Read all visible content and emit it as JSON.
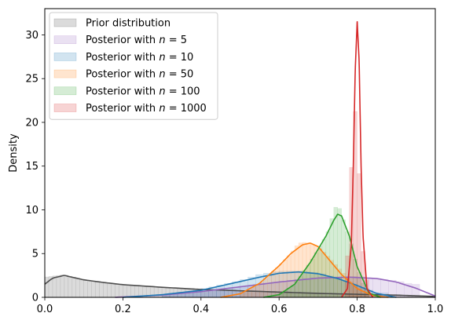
{
  "chart_data": {
    "type": "area",
    "ylabel": "Density",
    "xlabel": "",
    "xlim": [
      0.0,
      1.0
    ],
    "ylim": [
      0,
      33
    ],
    "grid": false,
    "legend_position": "top-left",
    "x_ticks": [
      "0.0",
      "0.2",
      "0.4",
      "0.6",
      "0.8",
      "1.0"
    ],
    "y_ticks": [
      "0",
      "5",
      "10",
      "15",
      "20",
      "25",
      "30"
    ],
    "series": [
      {
        "name": "Prior distribution",
        "color": "#4d4d4d",
        "kde_x": [
          0.0,
          0.02,
          0.05,
          0.1,
          0.15,
          0.2,
          0.3,
          0.4,
          0.5,
          0.6,
          0.7,
          0.8,
          0.9,
          1.0
        ],
        "kde_y": [
          1.5,
          2.2,
          2.5,
          2.0,
          1.7,
          1.45,
          1.15,
          0.9,
          0.75,
          0.6,
          0.45,
          0.35,
          0.25,
          0.1
        ],
        "hist_bin_width": 0.01,
        "hist_x": [
          0.0,
          0.05,
          0.1,
          0.2,
          0.3,
          0.4,
          0.5,
          0.6,
          0.7,
          0.8,
          0.9,
          0.99
        ],
        "hist_y": [
          2.3,
          2.6,
          2.0,
          1.45,
          1.15,
          0.9,
          0.75,
          0.6,
          0.45,
          0.35,
          0.25,
          0.15
        ]
      },
      {
        "name": "Posterior with n = 5",
        "label_prefix": "Posterior with ",
        "label_n": "5",
        "color": "#9467bd",
        "kde_x": [
          0.18,
          0.3,
          0.4,
          0.5,
          0.6,
          0.7,
          0.78,
          0.85,
          0.9,
          0.95,
          1.0
        ],
        "kde_y": [
          0.0,
          0.25,
          0.65,
          1.2,
          1.75,
          2.2,
          2.3,
          2.15,
          1.75,
          1.05,
          0.15
        ],
        "hist_bin_width": 0.02,
        "hist_x": [
          0.3,
          0.4,
          0.5,
          0.6,
          0.7,
          0.8,
          0.9,
          0.94
        ],
        "hist_y": [
          0.3,
          0.7,
          1.2,
          1.8,
          2.3,
          2.4,
          1.9,
          1.5
        ]
      },
      {
        "name": "Posterior with n = 10",
        "label_prefix": "Posterior with ",
        "label_n": "10",
        "color": "#1f77b4",
        "kde_x": [
          0.2,
          0.3,
          0.4,
          0.5,
          0.55,
          0.6,
          0.65,
          0.7,
          0.75,
          0.8,
          0.85,
          0.9
        ],
        "kde_y": [
          0.0,
          0.3,
          0.8,
          1.8,
          2.3,
          2.75,
          2.9,
          2.7,
          2.15,
          1.35,
          0.45,
          0.0
        ],
        "hist_bin_width": 0.02,
        "hist_x": [
          0.3,
          0.4,
          0.5,
          0.55,
          0.6,
          0.65,
          0.7,
          0.75,
          0.8,
          0.85
        ],
        "hist_y": [
          0.3,
          0.9,
          1.9,
          2.6,
          3.0,
          3.0,
          2.8,
          2.2,
          1.3,
          0.5
        ]
      },
      {
        "name": "Posterior with n = 50",
        "label_prefix": "Posterior with ",
        "label_n": "50",
        "color": "#ff7f0e",
        "kde_x": [
          0.45,
          0.5,
          0.55,
          0.6,
          0.63,
          0.66,
          0.68,
          0.7,
          0.73,
          0.76,
          0.8,
          0.84,
          0.88
        ],
        "kde_y": [
          0.0,
          0.4,
          1.6,
          3.6,
          5.0,
          6.0,
          6.2,
          5.8,
          4.2,
          2.6,
          1.0,
          0.2,
          0.0
        ],
        "hist_bin_width": 0.01,
        "hist_x": [
          0.5,
          0.55,
          0.6,
          0.63,
          0.65,
          0.67,
          0.69,
          0.71,
          0.74,
          0.77,
          0.8,
          0.83
        ],
        "hist_y": [
          0.4,
          1.5,
          3.6,
          5.0,
          6.2,
          6.3,
          6.0,
          5.4,
          4.0,
          2.5,
          1.0,
          0.3
        ]
      },
      {
        "name": "Posterior with n = 100",
        "label_prefix": "Posterior with ",
        "label_n": "100",
        "color": "#2ca02c",
        "kde_x": [
          0.56,
          0.6,
          0.64,
          0.68,
          0.7,
          0.72,
          0.74,
          0.75,
          0.76,
          0.78,
          0.8,
          0.83,
          0.86
        ],
        "kde_y": [
          0.0,
          0.3,
          1.5,
          4.0,
          5.5,
          7.0,
          8.8,
          9.5,
          9.3,
          7.0,
          3.5,
          0.5,
          0.0
        ],
        "hist_bin_width": 0.01,
        "hist_x": [
          0.6,
          0.64,
          0.68,
          0.7,
          0.72,
          0.73,
          0.74,
          0.75,
          0.76,
          0.77,
          0.78,
          0.8,
          0.82
        ],
        "hist_y": [
          0.3,
          1.5,
          4.0,
          5.5,
          7.0,
          8.0,
          10.0,
          10.6,
          9.7,
          8.0,
          7.0,
          3.5,
          1.0
        ]
      },
      {
        "name": "Posterior with n = 1000",
        "label_prefix": "Posterior with ",
        "label_n": "1000",
        "color": "#d62728",
        "kde_x": [
          0.76,
          0.775,
          0.785,
          0.79,
          0.795,
          0.8,
          0.805,
          0.81,
          0.815,
          0.825,
          0.84
        ],
        "kde_y": [
          0.0,
          1.0,
          6.0,
          15.0,
          26.0,
          31.5,
          27.0,
          15.0,
          7.0,
          1.0,
          0.0
        ],
        "hist_bin_width": 0.01,
        "hist_x": [
          0.77,
          0.78,
          0.79,
          0.8,
          0.81,
          0.82
        ],
        "hist_y": [
          2.5,
          7.0,
          22.7,
          19.8,
          8.5,
          2.0
        ]
      }
    ]
  }
}
